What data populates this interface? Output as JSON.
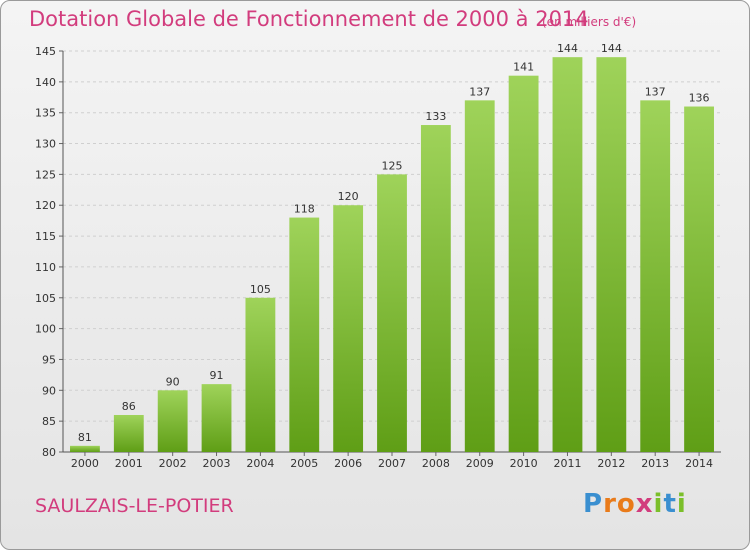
{
  "header": {
    "title": "Dotation Globale de Fonctionnement de 2000 à 2014",
    "subtitle": "(en milliers d'€)"
  },
  "footer": {
    "commune": "SAULZAIS-LE-POTIER",
    "logo_letters": [
      "P",
      "r",
      "o",
      "x",
      "i",
      "t",
      "i"
    ],
    "logo_colors": [
      "#3a8fd0",
      "#e97b1a",
      "#e97b1a",
      "#d23c7d",
      "#7bbf2a",
      "#3a8fd0",
      "#7bbf2a"
    ]
  },
  "colors": {
    "accent": "#d23c7d",
    "bar_top": "#9fd35a",
    "bar_bottom": "#5f9e16",
    "grid": "#cfcfcf",
    "axis_text": "#333333"
  },
  "chart_data": {
    "type": "bar",
    "title": "Dotation Globale de Fonctionnement de 2000 à 2014",
    "subtitle": "(en milliers d'€)",
    "categories": [
      "2000",
      "2001",
      "2002",
      "2003",
      "2004",
      "2005",
      "2006",
      "2007",
      "2008",
      "2009",
      "2010",
      "2011",
      "2012",
      "2013",
      "2014"
    ],
    "values": [
      81,
      86,
      90,
      91,
      105,
      118,
      120,
      125,
      133,
      137,
      141,
      144,
      144,
      137,
      136
    ],
    "ylim": [
      80,
      145
    ],
    "yticks": [
      80,
      85,
      90,
      95,
      100,
      105,
      110,
      115,
      120,
      125,
      130,
      135,
      140,
      145
    ],
    "grid": true,
    "legend": "none"
  }
}
